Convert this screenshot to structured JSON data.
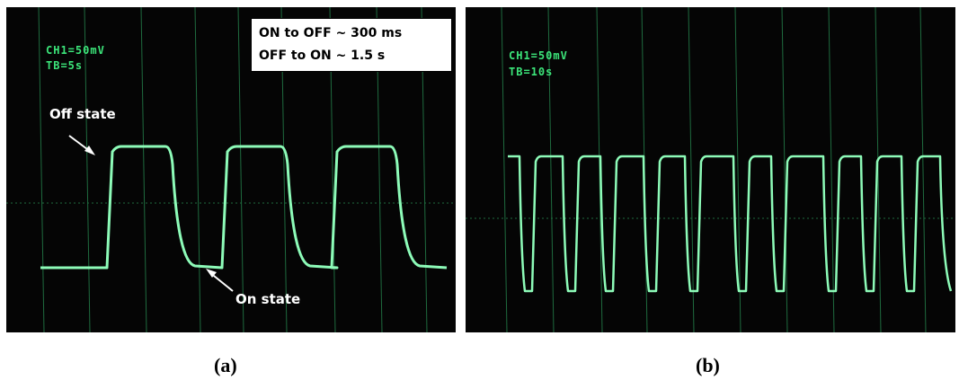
{
  "panel_a": {
    "channel_label": "CH1=50mV",
    "timebase_label": "TB=5s",
    "info_line1": "ON to OFF ~ 300 ms",
    "info_line2": "OFF to ON ~ 1.5 s",
    "off_state_label": "Off state",
    "on_state_label": "On state",
    "caption": "(a)",
    "trace_color": "#8dfbb8"
  },
  "panel_b": {
    "channel_label": "CH1=50mV",
    "timebase_label": "TB=10s",
    "caption": "(b)",
    "trace_color": "#8dfbb8"
  },
  "grid_color": "#1f6b3f"
}
